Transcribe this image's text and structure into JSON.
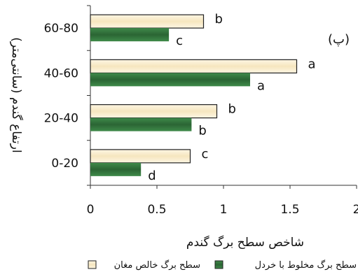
{
  "chart_data": {
    "type": "bar",
    "orientation": "horizontal",
    "panel_label": "(پ)",
    "xlabel": "شاخص سطح برگ گندم",
    "ylabel": "ارتفاع گندم (سانتی‌متر)",
    "xlim": [
      0,
      2
    ],
    "x_ticks": [
      "0",
      "0.5",
      "1",
      "1.5",
      "2"
    ],
    "categories": [
      "0-20",
      "20-40",
      "40-60",
      "60-80"
    ],
    "series": [
      {
        "name": "سطح برگ خالص مغان",
        "color": "#fbefd3",
        "values": [
          0.75,
          0.95,
          1.55,
          0.85
        ],
        "letters": [
          "c",
          "b",
          "a",
          "b"
        ]
      },
      {
        "name": "سطح برگ مخلوط با خردل",
        "color": "#2f6e3a",
        "values": [
          0.38,
          0.76,
          1.2,
          0.59
        ],
        "letters": [
          "d",
          "b",
          "a",
          "c"
        ]
      }
    ],
    "grid": false,
    "legend_position": "bottom"
  }
}
